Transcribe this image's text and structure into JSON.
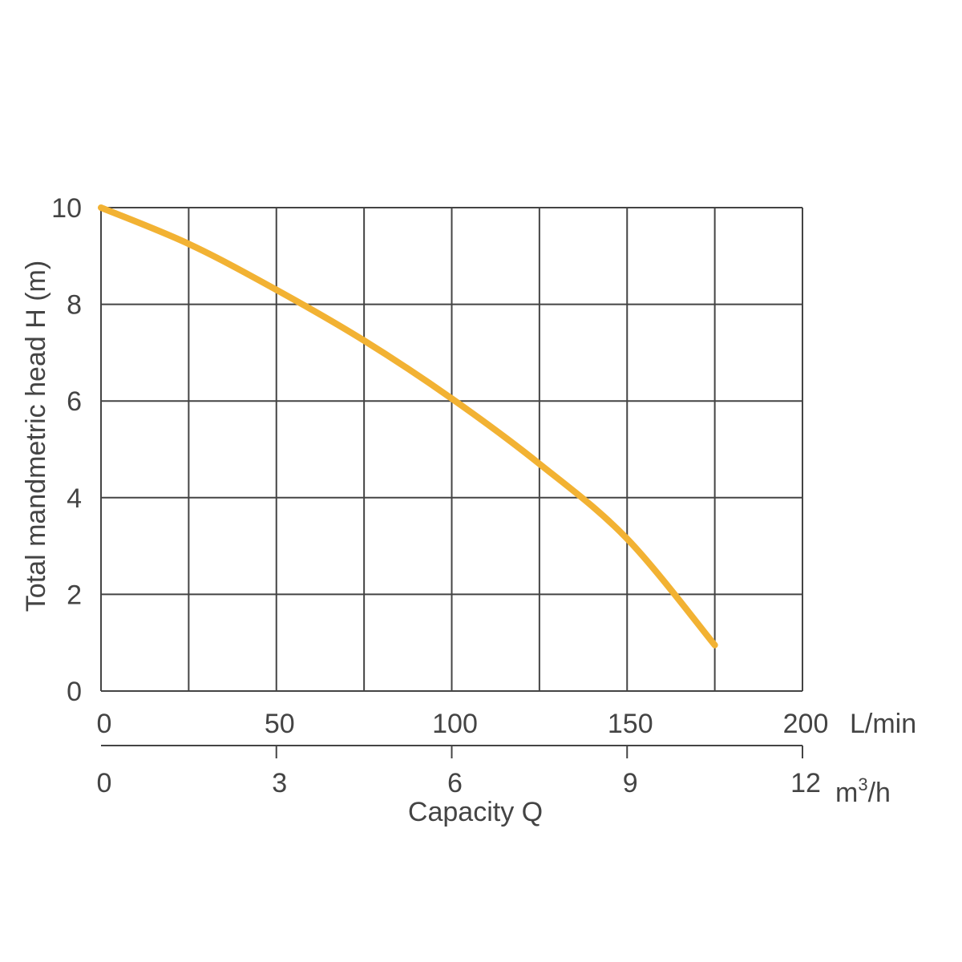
{
  "chart_data": {
    "type": "line",
    "title": "",
    "ylabel": "Total mandmetric head H (m)",
    "xlabel": "Capacity Q",
    "ylim": [
      0,
      10
    ],
    "yticks": [
      "0",
      "2",
      "4",
      "6",
      "8",
      "10"
    ],
    "xlim": [
      0,
      200
    ],
    "x_unit": "L/min",
    "xticks": [
      "0",
      "50",
      "100",
      "150",
      "200"
    ],
    "x2lim": [
      0,
      12
    ],
    "x2_unit": "m³/h",
    "x2_unit_base": "m",
    "x2_unit_sup": "3",
    "x2_unit_tail": "/h",
    "x2ticks": [
      "0",
      "3",
      "6",
      "9",
      "12"
    ],
    "grid": true,
    "series": [
      {
        "color": "#F2B233",
        "x": [
          0,
          25,
          50,
          75,
          100,
          125,
          150,
          175
        ],
        "y": [
          10,
          9.25,
          8.3,
          7.25,
          6.05,
          4.7,
          3.15,
          0.95
        ]
      }
    ]
  }
}
